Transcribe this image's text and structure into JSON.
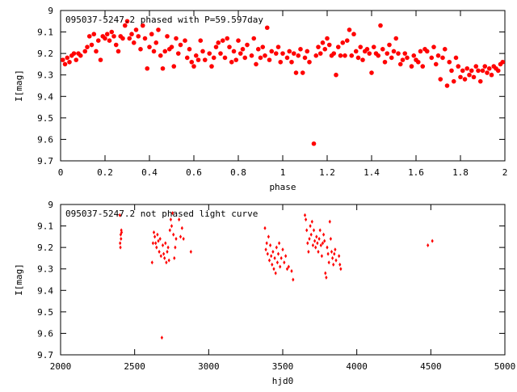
{
  "chart_data": [
    {
      "type": "scatter",
      "title": "095037-5247.2 phased with P=59.597day",
      "xlabel": "phase",
      "ylabel": "I[mag]",
      "xlim": [
        0,
        2
      ],
      "ylim": [
        9.7,
        9.0
      ],
      "y_inverted": true,
      "xticks": [
        "0",
        "0.2",
        "0.4",
        "0.6",
        "0.8",
        "1",
        "1.2",
        "1.4",
        "1.6",
        "1.8",
        "2"
      ],
      "yticks": [
        "9",
        "9.1",
        "9.2",
        "9.3",
        "9.4",
        "9.5",
        "9.6",
        "9.7"
      ],
      "marker_color": "#ff0000",
      "marker": "filled-circle",
      "points": [
        [
          0.01,
          9.23
        ],
        [
          0.02,
          9.25
        ],
        [
          0.03,
          9.22
        ],
        [
          0.04,
          9.24
        ],
        [
          0.05,
          9.21
        ],
        [
          0.06,
          9.2
        ],
        [
          0.07,
          9.23
        ],
        [
          0.08,
          9.2
        ],
        [
          0.09,
          9.21
        ],
        [
          0.11,
          9.19
        ],
        [
          0.12,
          9.17
        ],
        [
          0.13,
          9.12
        ],
        [
          0.14,
          9.16
        ],
        [
          0.15,
          9.11
        ],
        [
          0.16,
          9.19
        ],
        [
          0.17,
          9.14
        ],
        [
          0.18,
          9.23
        ],
        [
          0.19,
          9.12
        ],
        [
          0.2,
          9.13
        ],
        [
          0.21,
          9.11
        ],
        [
          0.22,
          9.14
        ],
        [
          0.23,
          9.1
        ],
        [
          0.24,
          9.12
        ],
        [
          0.25,
          9.16
        ],
        [
          0.26,
          9.19
        ],
        [
          0.27,
          9.12
        ],
        [
          0.28,
          9.13
        ],
        [
          0.29,
          9.07
        ],
        [
          0.3,
          9.05
        ],
        [
          0.31,
          9.13
        ],
        [
          0.32,
          9.11
        ],
        [
          0.33,
          9.15
        ],
        [
          0.34,
          9.09
        ],
        [
          0.35,
          9.12
        ],
        [
          0.36,
          9.18
        ],
        [
          0.37,
          9.07
        ],
        [
          0.38,
          9.13
        ],
        [
          0.39,
          9.27
        ],
        [
          0.4,
          9.17
        ],
        [
          0.41,
          9.11
        ],
        [
          0.42,
          9.19
        ],
        [
          0.43,
          9.15
        ],
        [
          0.44,
          9.09
        ],
        [
          0.45,
          9.21
        ],
        [
          0.46,
          9.27
        ],
        [
          0.47,
          9.19
        ],
        [
          0.48,
          9.12
        ],
        [
          0.49,
          9.18
        ],
        [
          0.5,
          9.17
        ],
        [
          0.51,
          9.26
        ],
        [
          0.52,
          9.13
        ],
        [
          0.53,
          9.2
        ],
        [
          0.54,
          9.16
        ],
        [
          0.56,
          9.14
        ],
        [
          0.57,
          9.22
        ],
        [
          0.58,
          9.18
        ],
        [
          0.59,
          9.24
        ],
        [
          0.6,
          9.26
        ],
        [
          0.61,
          9.21
        ],
        [
          0.62,
          9.23
        ],
        [
          0.63,
          9.14
        ],
        [
          0.64,
          9.19
        ],
        [
          0.65,
          9.23
        ],
        [
          0.67,
          9.2
        ],
        [
          0.68,
          9.26
        ],
        [
          0.69,
          9.22
        ],
        [
          0.7,
          9.17
        ],
        [
          0.71,
          9.15
        ],
        [
          0.72,
          9.2
        ],
        [
          0.73,
          9.14
        ],
        [
          0.74,
          9.22
        ],
        [
          0.75,
          9.13
        ],
        [
          0.76,
          9.17
        ],
        [
          0.77,
          9.24
        ],
        [
          0.78,
          9.19
        ],
        [
          0.79,
          9.23
        ],
        [
          0.8,
          9.14
        ],
        [
          0.81,
          9.2
        ],
        [
          0.82,
          9.18
        ],
        [
          0.83,
          9.22
        ],
        [
          0.84,
          9.16
        ],
        [
          0.86,
          9.21
        ],
        [
          0.87,
          9.13
        ],
        [
          0.88,
          9.25
        ],
        [
          0.89,
          9.18
        ],
        [
          0.9,
          9.22
        ],
        [
          0.91,
          9.17
        ],
        [
          0.92,
          9.21
        ],
        [
          0.93,
          9.08
        ],
        [
          0.94,
          9.23
        ],
        [
          0.95,
          9.19
        ],
        [
          0.97,
          9.2
        ],
        [
          0.98,
          9.17
        ],
        [
          0.99,
          9.24
        ],
        [
          1.0,
          9.2
        ],
        [
          1.02,
          9.22
        ],
        [
          1.03,
          9.19
        ],
        [
          1.04,
          9.24
        ],
        [
          1.05,
          9.2
        ],
        [
          1.06,
          9.29
        ],
        [
          1.07,
          9.21
        ],
        [
          1.08,
          9.18
        ],
        [
          1.09,
          9.29
        ],
        [
          1.1,
          9.22
        ],
        [
          1.11,
          9.19
        ],
        [
          1.12,
          9.24
        ],
        [
          1.14,
          9.62
        ],
        [
          1.15,
          9.21
        ],
        [
          1.16,
          9.17
        ],
        [
          1.17,
          9.2
        ],
        [
          1.18,
          9.15
        ],
        [
          1.19,
          9.18
        ],
        [
          1.2,
          9.13
        ],
        [
          1.21,
          9.16
        ],
        [
          1.22,
          9.21
        ],
        [
          1.23,
          9.2
        ],
        [
          1.24,
          9.3
        ],
        [
          1.25,
          9.17
        ],
        [
          1.26,
          9.21
        ],
        [
          1.27,
          9.15
        ],
        [
          1.28,
          9.21
        ],
        [
          1.29,
          9.14
        ],
        [
          1.3,
          9.09
        ],
        [
          1.31,
          9.21
        ],
        [
          1.32,
          9.11
        ],
        [
          1.33,
          9.19
        ],
        [
          1.34,
          9.22
        ],
        [
          1.35,
          9.17
        ],
        [
          1.36,
          9.23
        ],
        [
          1.37,
          9.19
        ],
        [
          1.38,
          9.18
        ],
        [
          1.39,
          9.2
        ],
        [
          1.4,
          9.29
        ],
        [
          1.41,
          9.17
        ],
        [
          1.42,
          9.2
        ],
        [
          1.43,
          9.21
        ],
        [
          1.44,
          9.07
        ],
        [
          1.45,
          9.18
        ],
        [
          1.46,
          9.24
        ],
        [
          1.47,
          9.2
        ],
        [
          1.48,
          9.16
        ],
        [
          1.49,
          9.22
        ],
        [
          1.5,
          9.19
        ],
        [
          1.51,
          9.13
        ],
        [
          1.52,
          9.2
        ],
        [
          1.53,
          9.25
        ],
        [
          1.54,
          9.23
        ],
        [
          1.55,
          9.2
        ],
        [
          1.56,
          9.22
        ],
        [
          1.58,
          9.26
        ],
        [
          1.59,
          9.21
        ],
        [
          1.6,
          9.23
        ],
        [
          1.61,
          9.24
        ],
        [
          1.62,
          9.19
        ],
        [
          1.63,
          9.26
        ],
        [
          1.64,
          9.18
        ],
        [
          1.65,
          9.19
        ],
        [
          1.67,
          9.22
        ],
        [
          1.68,
          9.17
        ],
        [
          1.69,
          9.25
        ],
        [
          1.7,
          9.21
        ],
        [
          1.71,
          9.32
        ],
        [
          1.72,
          9.22
        ],
        [
          1.73,
          9.18
        ],
        [
          1.74,
          9.35
        ],
        [
          1.75,
          9.24
        ],
        [
          1.76,
          9.28
        ],
        [
          1.77,
          9.33
        ],
        [
          1.78,
          9.22
        ],
        [
          1.79,
          9.26
        ],
        [
          1.8,
          9.31
        ],
        [
          1.81,
          9.28
        ],
        [
          1.82,
          9.32
        ],
        [
          1.83,
          9.27
        ],
        [
          1.84,
          9.3
        ],
        [
          1.85,
          9.28
        ],
        [
          1.86,
          9.31
        ],
        [
          1.87,
          9.26
        ],
        [
          1.88,
          9.28
        ],
        [
          1.89,
          9.33
        ],
        [
          1.9,
          9.28
        ],
        [
          1.91,
          9.26
        ],
        [
          1.92,
          9.29
        ],
        [
          1.93,
          9.27
        ],
        [
          1.94,
          9.3
        ],
        [
          1.95,
          9.26
        ],
        [
          1.96,
          9.27
        ],
        [
          1.97,
          9.28
        ],
        [
          1.98,
          9.25
        ],
        [
          1.99,
          9.24
        ]
      ]
    },
    {
      "type": "scatter",
      "title": "095037-5247.2 not phased light curve",
      "xlabel": "hjd0",
      "ylabel": "I[mag]",
      "xlim": [
        2000,
        5000
      ],
      "ylim": [
        9.7,
        9.0
      ],
      "y_inverted": true,
      "xticks": [
        "2000",
        "2500",
        "3000",
        "3500",
        "4000",
        "4500",
        "5000"
      ],
      "yticks": [
        "9",
        "9.1",
        "9.2",
        "9.3",
        "9.4",
        "9.5",
        "9.6",
        "9.7"
      ],
      "marker_color": "#ff0000",
      "marker": "small-diamond",
      "points": [
        [
          2400,
          9.05
        ],
        [
          2402,
          9.18
        ],
        [
          2404,
          9.2
        ],
        [
          2406,
          9.14
        ],
        [
          2408,
          9.16
        ],
        [
          2410,
          9.12
        ],
        [
          2412,
          9.13
        ],
        [
          2618,
          9.27
        ],
        [
          2624,
          9.18
        ],
        [
          2630,
          9.13
        ],
        [
          2636,
          9.15
        ],
        [
          2642,
          9.18
        ],
        [
          2648,
          9.2
        ],
        [
          2654,
          9.14
        ],
        [
          2660,
          9.17
        ],
        [
          2666,
          9.22
        ],
        [
          2672,
          9.16
        ],
        [
          2678,
          9.24
        ],
        [
          2684,
          9.62
        ],
        [
          2690,
          9.19
        ],
        [
          2696,
          9.23
        ],
        [
          2702,
          9.25
        ],
        [
          2708,
          9.18
        ],
        [
          2714,
          9.27
        ],
        [
          2720,
          9.22
        ],
        [
          2726,
          9.2
        ],
        [
          2732,
          9.26
        ],
        [
          2738,
          9.12
        ],
        [
          2744,
          9.07
        ],
        [
          2750,
          9.1
        ],
        [
          2756,
          9.04
        ],
        [
          2762,
          9.14
        ],
        [
          2768,
          9.25
        ],
        [
          2774,
          9.2
        ],
        [
          2780,
          9.16
        ],
        [
          2800,
          9.07
        ],
        [
          2810,
          9.15
        ],
        [
          2820,
          9.11
        ],
        [
          2830,
          9.16
        ],
        [
          2880,
          9.22
        ],
        [
          3380,
          9.11
        ],
        [
          3386,
          9.21
        ],
        [
          3392,
          9.18
        ],
        [
          3398,
          9.23
        ],
        [
          3404,
          9.15
        ],
        [
          3410,
          9.26
        ],
        [
          3416,
          9.19
        ],
        [
          3422,
          9.24
        ],
        [
          3428,
          9.28
        ],
        [
          3434,
          9.22
        ],
        [
          3440,
          9.3
        ],
        [
          3446,
          9.25
        ],
        [
          3452,
          9.32
        ],
        [
          3458,
          9.2
        ],
        [
          3464,
          9.27
        ],
        [
          3470,
          9.23
        ],
        [
          3476,
          9.18
        ],
        [
          3482,
          9.29
        ],
        [
          3490,
          9.25
        ],
        [
          3500,
          9.21
        ],
        [
          3510,
          9.27
        ],
        [
          3520,
          9.24
        ],
        [
          3530,
          9.3
        ],
        [
          3540,
          9.29
        ],
        [
          3560,
          9.31
        ],
        [
          3570,
          9.35
        ],
        [
          3650,
          9.05
        ],
        [
          3656,
          9.07
        ],
        [
          3662,
          9.12
        ],
        [
          3668,
          9.18
        ],
        [
          3674,
          9.22
        ],
        [
          3680,
          9.16
        ],
        [
          3686,
          9.1
        ],
        [
          3692,
          9.14
        ],
        [
          3698,
          9.08
        ],
        [
          3704,
          9.19
        ],
        [
          3710,
          9.12
        ],
        [
          3716,
          9.17
        ],
        [
          3722,
          9.2
        ],
        [
          3728,
          9.15
        ],
        [
          3734,
          9.18
        ],
        [
          3740,
          9.22
        ],
        [
          3746,
          9.16
        ],
        [
          3752,
          9.12
        ],
        [
          3758,
          9.19
        ],
        [
          3764,
          9.24
        ],
        [
          3770,
          9.18
        ],
        [
          3776,
          9.14
        ],
        [
          3782,
          9.17
        ],
        [
          3788,
          9.32
        ],
        [
          3794,
          9.34
        ],
        [
          3800,
          9.2
        ],
        [
          3806,
          9.23
        ],
        [
          3812,
          9.27
        ],
        [
          3818,
          9.08
        ],
        [
          3824,
          9.16
        ],
        [
          3830,
          9.22
        ],
        [
          3836,
          9.25
        ],
        [
          3842,
          9.28
        ],
        [
          3848,
          9.23
        ],
        [
          3854,
          9.21
        ],
        [
          3860,
          9.26
        ],
        [
          3880,
          9.24
        ],
        [
          3886,
          9.28
        ],
        [
          3892,
          9.3
        ],
        [
          4480,
          9.19
        ],
        [
          4510,
          9.17
        ]
      ]
    }
  ]
}
